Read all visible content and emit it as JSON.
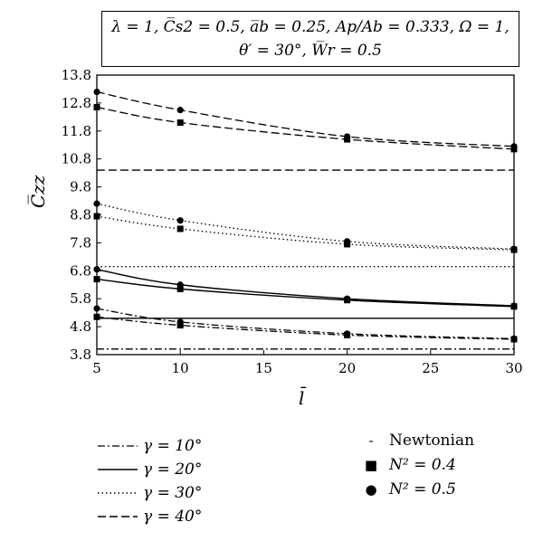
{
  "header": {
    "line1": "λ = 1, C̅s2 = 0.5, a̅b = 0.25, Ap/Ab = 0.333, Ω = 1,",
    "line2": "θ′ = 30°, W̅r = 0.5"
  },
  "legend": {
    "gamma": [
      {
        "label": "γ = 10°",
        "dash": "dashdot"
      },
      {
        "label": "γ = 20°",
        "dash": "solid"
      },
      {
        "label": "γ = 30°",
        "dash": "dotted"
      },
      {
        "label": "γ = 40°",
        "dash": "dashed"
      }
    ],
    "markers": [
      {
        "symbol": "-",
        "label": "Newtonian",
        "marker": "none"
      },
      {
        "symbol": "■",
        "label": "N² = 0.4",
        "marker": "square"
      },
      {
        "symbol": "●",
        "label": "N² = 0.5",
        "marker": "circle"
      }
    ]
  },
  "chart_data": {
    "type": "line",
    "title": "",
    "xlabel": "l̄",
    "ylabel": "C̅zz",
    "xlim": [
      5,
      30
    ],
    "ylim": [
      3.8,
      13.8
    ],
    "x_ticks": [
      "5",
      "10",
      "15",
      "20",
      "25",
      "30"
    ],
    "y_ticks": [
      "3.8",
      "4.8",
      "5.8",
      "6.8",
      "7.8",
      "8.8",
      "9.8",
      "10.8",
      "11.8",
      "12.8",
      "13.8"
    ],
    "grid": false,
    "x": [
      5,
      10,
      20,
      30
    ],
    "series": [
      {
        "gamma": "γ = 10°",
        "case": "Newtonian",
        "dash": "dashdot",
        "marker": "none",
        "values": [
          4.0,
          4.0,
          4.0,
          4.0
        ]
      },
      {
        "gamma": "γ = 10°",
        "case": "N² = 0.4",
        "dash": "dashdot",
        "marker": "square",
        "values": [
          5.15,
          4.85,
          4.5,
          4.35
        ]
      },
      {
        "gamma": "γ = 10°",
        "case": "N² = 0.5",
        "dash": "dashdot",
        "marker": "circle",
        "values": [
          5.45,
          4.97,
          4.55,
          4.37
        ]
      },
      {
        "gamma": "γ = 20°",
        "case": "Newtonian",
        "dash": "solid",
        "marker": "none",
        "values": [
          5.1,
          5.1,
          5.1,
          5.1
        ]
      },
      {
        "gamma": "γ = 20°",
        "case": "N² = 0.4",
        "dash": "solid",
        "marker": "square",
        "values": [
          6.5,
          6.15,
          5.75,
          5.52
        ]
      },
      {
        "gamma": "γ = 20°",
        "case": "N² = 0.5",
        "dash": "solid",
        "marker": "circle",
        "values": [
          6.85,
          6.3,
          5.8,
          5.55
        ]
      },
      {
        "gamma": "γ = 30°",
        "case": "Newtonian",
        "dash": "dotted",
        "marker": "none",
        "values": [
          6.95,
          6.95,
          6.95,
          6.95
        ]
      },
      {
        "gamma": "γ = 30°",
        "case": "N² = 0.4",
        "dash": "dotted",
        "marker": "square",
        "values": [
          8.75,
          8.3,
          7.75,
          7.55
        ]
      },
      {
        "gamma": "γ = 30°",
        "case": "N² = 0.5",
        "dash": "dotted",
        "marker": "circle",
        "values": [
          9.2,
          8.6,
          7.85,
          7.58
        ]
      },
      {
        "gamma": "γ = 40°",
        "case": "Newtonian",
        "dash": "dashed",
        "marker": "none",
        "values": [
          10.4,
          10.4,
          10.4,
          10.4
        ]
      },
      {
        "gamma": "γ = 40°",
        "case": "N² = 0.4",
        "dash": "dashed",
        "marker": "square",
        "values": [
          12.65,
          12.1,
          11.5,
          11.15
        ]
      },
      {
        "gamma": "γ = 40°",
        "case": "N² = 0.5",
        "dash": "dashed",
        "marker": "circle",
        "values": [
          13.2,
          12.55,
          11.6,
          11.25
        ]
      }
    ]
  }
}
